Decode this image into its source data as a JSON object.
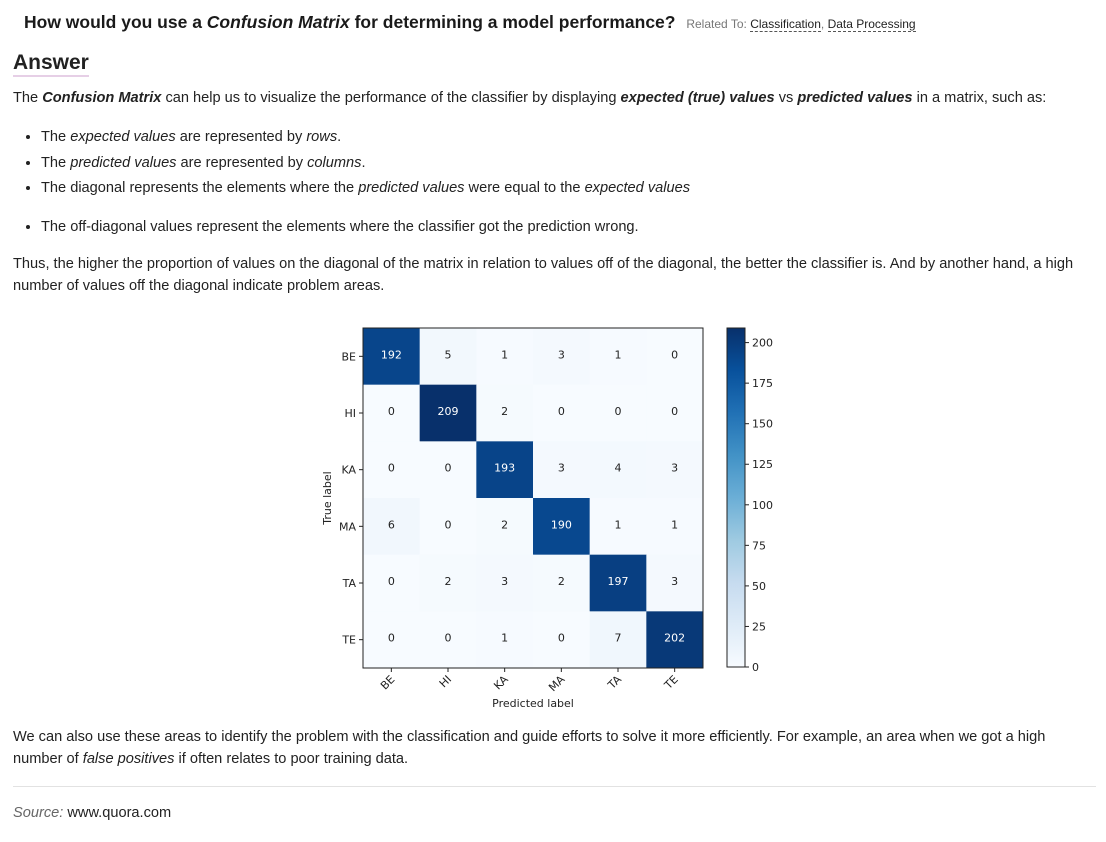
{
  "question": {
    "prefix": "How would you use a ",
    "emphasis": "Confusion Matrix",
    "suffix": " for determining a model performance?",
    "related_label": "Related To:",
    "related_links": [
      "Classification",
      "Data Processing"
    ],
    "related_sep": ", "
  },
  "answer_heading": "Answer",
  "intro": {
    "t1": "The ",
    "b1": "Confusion Matrix",
    "t2": " can help us to visualize the performance of the classifier by displaying ",
    "b2": "expected (true) values",
    "t3": " vs ",
    "b3": "predicted values",
    "t4": " in a matrix, such as:"
  },
  "bullets": [
    {
      "a": "The ",
      "i1": "expected values",
      "b": " are represented by ",
      "i2": "rows",
      "c": "."
    },
    {
      "a": "The ",
      "i1": "predicted values",
      "b": " are represented by ",
      "i2": "columns",
      "c": "."
    },
    {
      "a": "The diagonal represents the elements where the ",
      "i1": "predicted values",
      "b": " were equal to the ",
      "i2": "expected values",
      "c": ""
    },
    {
      "a": "The off-diagonal values represent the elements where the classifier got the prediction wrong.",
      "i1": "",
      "b": "",
      "i2": "",
      "c": ""
    }
  ],
  "paragraph2": "Thus, the higher the proportion of values on the diagonal of the matrix in relation to values off of the diagonal, the better the classifier is. And by another hand, a high number of values off the diagonal indicate problem areas.",
  "paragraph3": {
    "t1": "We can also use these areas to identify the problem with the classification and guide efforts to solve it more efficiently. For example, an area when we got a high number of ",
    "i1": "false positives",
    "t2": " if often relates to poor training data."
  },
  "source": {
    "label": "Source:",
    "value": "www.quora.com"
  },
  "chart_data": {
    "type": "heatmap",
    "title": "",
    "xlabel": "Predicted label",
    "ylabel": "True label",
    "row_labels": [
      "BE",
      "HI",
      "KA",
      "MA",
      "TA",
      "TE"
    ],
    "col_labels": [
      "BE",
      "HI",
      "KA",
      "MA",
      "TA",
      "TE"
    ],
    "values": [
      [
        192,
        5,
        1,
        3,
        1,
        0
      ],
      [
        0,
        209,
        2,
        0,
        0,
        0
      ],
      [
        0,
        0,
        193,
        3,
        4,
        3
      ],
      [
        6,
        0,
        2,
        190,
        1,
        1
      ],
      [
        0,
        2,
        3,
        2,
        197,
        3
      ],
      [
        0,
        0,
        1,
        0,
        7,
        202
      ]
    ],
    "colorbar_range": [
      0,
      209
    ],
    "colorbar_ticks": [
      0,
      25,
      50,
      75,
      100,
      125,
      150,
      175,
      200
    ],
    "colormap": "Blues",
    "colors": {
      "low": "#f7fbff",
      "high": "#08306b"
    }
  }
}
